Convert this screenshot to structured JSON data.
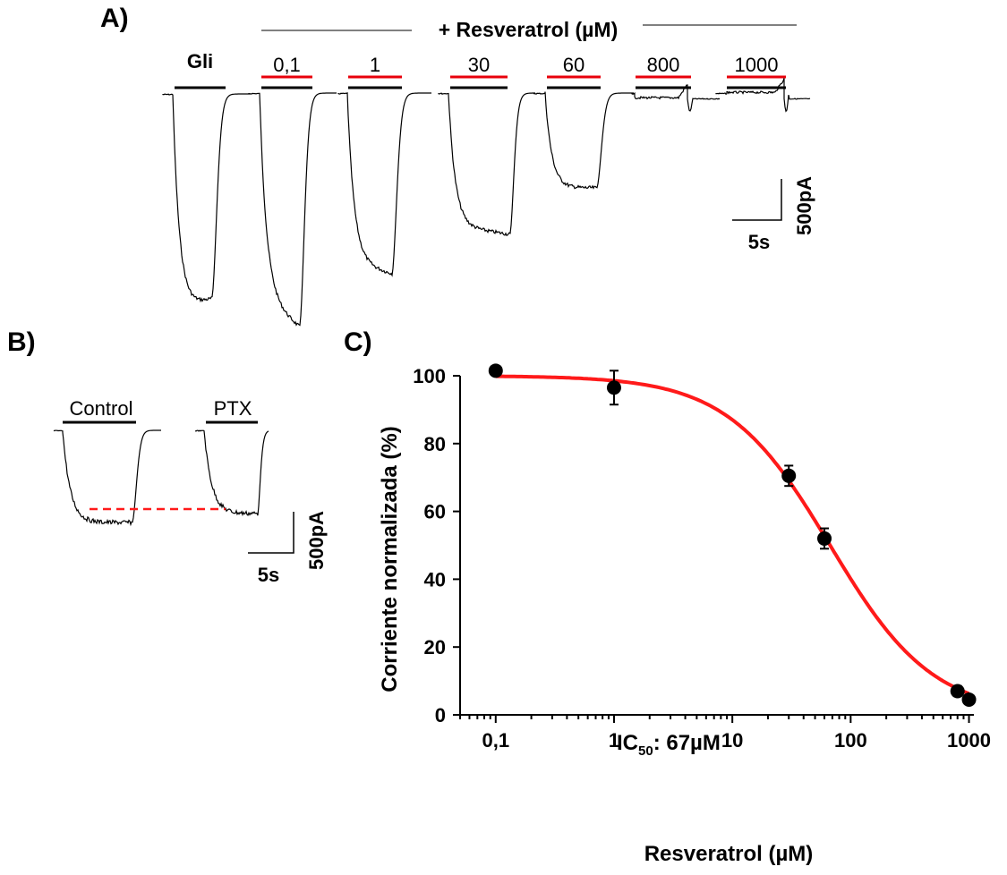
{
  "panels": {
    "a": {
      "label": "A)"
    },
    "b": {
      "label": "B)"
    },
    "c": {
      "label": "C)"
    }
  },
  "panel_a": {
    "header": "+ Resveratrol (µM)",
    "traces": [
      {
        "label": "Gli",
        "bold": true,
        "red_bar": false
      },
      {
        "label": "0,1",
        "bold": false,
        "red_bar": true
      },
      {
        "label": "1",
        "bold": false,
        "red_bar": true
      },
      {
        "label": "30",
        "bold": false,
        "red_bar": true
      },
      {
        "label": "60",
        "bold": false,
        "red_bar": true
      },
      {
        "label": "800",
        "bold": false,
        "red_bar": true
      },
      {
        "label": "1000",
        "bold": false,
        "red_bar": true
      }
    ],
    "scale_time": "5s",
    "scale_current": "500pA"
  },
  "panel_b": {
    "control_label": "Control",
    "ptx_label": "PTX",
    "scale_time": "5s",
    "scale_current": "500pA"
  },
  "colors": {
    "trace": "#000000",
    "drug_bar": "#e8000b",
    "fit": "#ff1a1a",
    "dashed": "#ff1a1a"
  },
  "chart_data": {
    "type": "scatter",
    "xlabel": "Resveratrol (µM)",
    "ylabel": "Corriente normalizada (%)",
    "x_scale": "log",
    "xlim": [
      0.05,
      1100
    ],
    "ylim": [
      0,
      100
    ],
    "x_ticks": [
      {
        "value": 0.1,
        "label": "0,1"
      },
      {
        "value": 1,
        "label": "1"
      },
      {
        "value": 10,
        "label": "10"
      },
      {
        "value": 100,
        "label": "100"
      },
      {
        "value": 1000,
        "label": "1000"
      }
    ],
    "y_ticks": [
      0,
      20,
      40,
      60,
      80,
      100
    ],
    "points": [
      {
        "x": 0.1,
        "y": 101.5,
        "err": 0
      },
      {
        "x": 1,
        "y": 96.5,
        "err": 5
      },
      {
        "x": 30,
        "y": 70.5,
        "err": 3
      },
      {
        "x": 60,
        "y": 52,
        "err": 3
      },
      {
        "x": 800,
        "y": 7,
        "err": 1.5
      },
      {
        "x": 1000,
        "y": 4.5,
        "err": 0.8
      }
    ],
    "fit": {
      "ic50": 67,
      "hill": 1,
      "top": 100,
      "bottom": 0
    },
    "annotation": {
      "main": "IC",
      "sub": "50",
      "value": ": 67µM"
    },
    "grid": false,
    "legend": "none"
  }
}
